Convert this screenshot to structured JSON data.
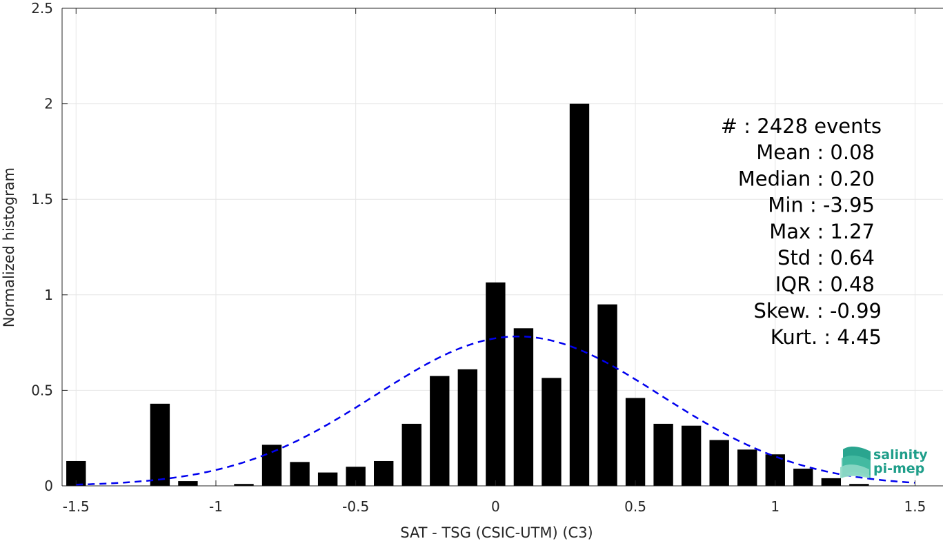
{
  "chart_data": {
    "type": "bar",
    "xlabel": "SAT - TSG (CSIC-UTM) (C3)",
    "ylabel": "Normalized histogram",
    "xlim": [
      -1.55,
      1.6
    ],
    "ylim": [
      0,
      2.5
    ],
    "x_ticks": [
      -1.5,
      -1,
      -0.5,
      0,
      0.5,
      1,
      1.5
    ],
    "x_tick_labels": [
      "-1.5",
      "-1",
      "-0.5",
      "0",
      "0.5",
      "1",
      "1.5"
    ],
    "y_ticks": [
      0,
      0.5,
      1,
      1.5,
      2,
      2.5
    ],
    "y_tick_labels": [
      "0",
      "0.5",
      "1",
      "1.5",
      "2",
      "2.5"
    ],
    "grid": true,
    "bar_width": 0.07,
    "bins": [
      {
        "x": -1.5,
        "y": 0.13
      },
      {
        "x": -1.4,
        "y": 0
      },
      {
        "x": -1.3,
        "y": 0
      },
      {
        "x": -1.2,
        "y": 0.43
      },
      {
        "x": -1.1,
        "y": 0.025
      },
      {
        "x": -1.0,
        "y": 0
      },
      {
        "x": -0.9,
        "y": 0.01
      },
      {
        "x": -0.8,
        "y": 0.215
      },
      {
        "x": -0.7,
        "y": 0.125
      },
      {
        "x": -0.6,
        "y": 0.07
      },
      {
        "x": -0.5,
        "y": 0.1
      },
      {
        "x": -0.4,
        "y": 0.13
      },
      {
        "x": -0.3,
        "y": 0.325
      },
      {
        "x": -0.2,
        "y": 0.575
      },
      {
        "x": -0.1,
        "y": 0.61
      },
      {
        "x": 0.0,
        "y": 1.065
      },
      {
        "x": 0.1,
        "y": 0.825
      },
      {
        "x": 0.2,
        "y": 0.565
      },
      {
        "x": 0.3,
        "y": 2.0
      },
      {
        "x": 0.4,
        "y": 0.95
      },
      {
        "x": 0.5,
        "y": 0.46
      },
      {
        "x": 0.6,
        "y": 0.325
      },
      {
        "x": 0.7,
        "y": 0.315
      },
      {
        "x": 0.8,
        "y": 0.24
      },
      {
        "x": 0.9,
        "y": 0.19
      },
      {
        "x": 1.0,
        "y": 0.165
      },
      {
        "x": 1.1,
        "y": 0.09
      },
      {
        "x": 1.2,
        "y": 0.04
      },
      {
        "x": 1.3,
        "y": 0.01
      }
    ],
    "bar_color": "#000000",
    "fit_curve": {
      "style": "dashed",
      "color": "#0000ee",
      "distribution": "normal",
      "mean": 0.08,
      "std": 0.51,
      "x_range": [
        -1.5,
        1.5
      ]
    },
    "stats": {
      "count_line": "#  : 2428 events",
      "lines": [
        "Mean : 0.08",
        "Median : 0.20",
        "Min : -3.95",
        "Max : 1.27",
        "Std : 0.64",
        "IQR : 0.48",
        "Skew. : -0.99",
        "Kurt. : 4.45"
      ]
    }
  },
  "logo": {
    "line1": "salinity",
    "line2": "pi-mep",
    "color": "#1f9e8a"
  }
}
